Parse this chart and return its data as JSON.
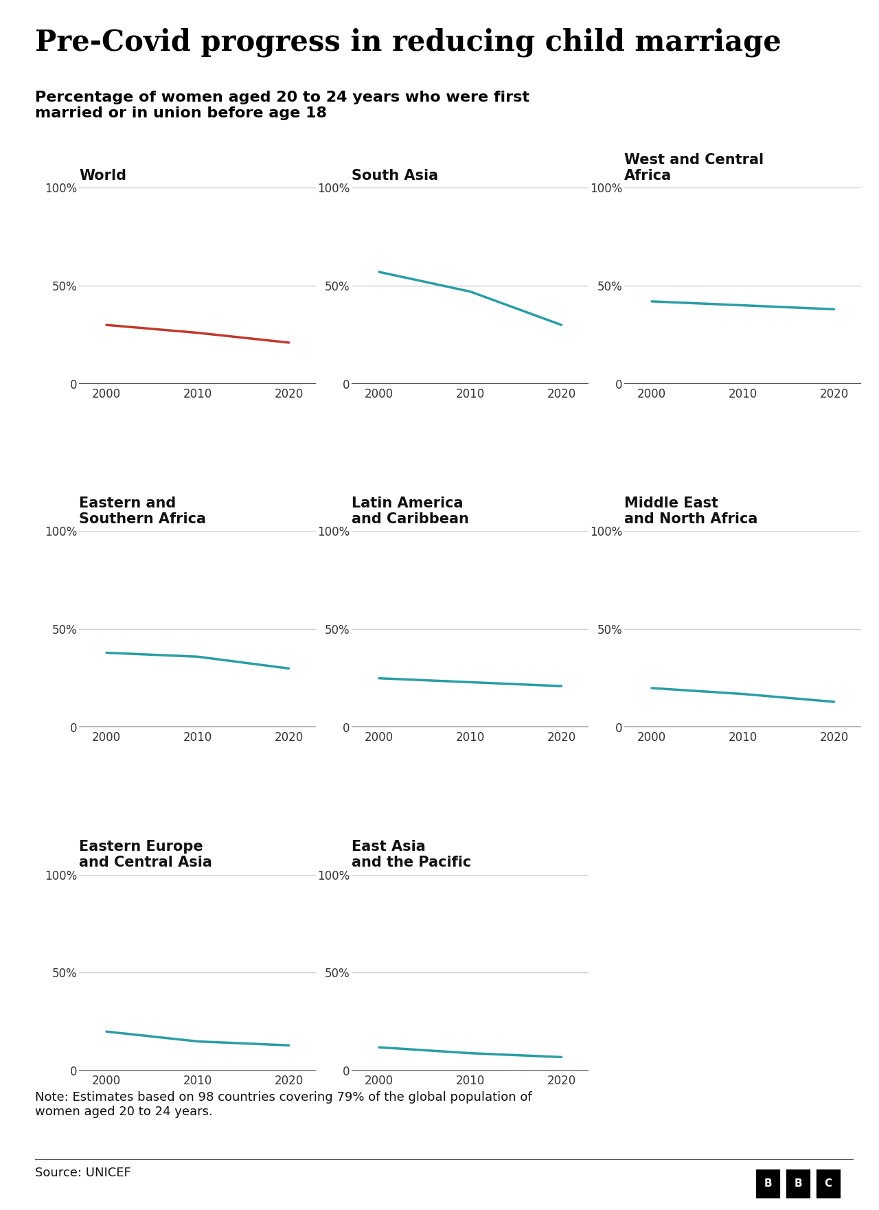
{
  "title": "Pre-Covid progress in reducing child marriage",
  "subtitle": "Percentage of women aged 20 to 24 years who were first\nmarried or in union before age 18",
  "note": "Note: Estimates based on 98 countries covering 79% of the global population of\nwomen aged 20 to 24 years.",
  "source": "Source: UNICEF",
  "years": [
    2000,
    2010,
    2020
  ],
  "panels": [
    {
      "title_lines": [
        "World"
      ],
      "values": [
        30,
        26,
        21
      ],
      "color": "#c0392b",
      "row": 0,
      "col": 0
    },
    {
      "title_lines": [
        "South Asia"
      ],
      "values": [
        57,
        47,
        30
      ],
      "color": "#2a9da5",
      "row": 0,
      "col": 1
    },
    {
      "title_lines": [
        "West and Central",
        "Africa"
      ],
      "values": [
        42,
        40,
        38
      ],
      "color": "#2a9da5",
      "row": 0,
      "col": 2
    },
    {
      "title_lines": [
        "Eastern and",
        "Southern Africa"
      ],
      "values": [
        38,
        36,
        30
      ],
      "color": "#2a9da5",
      "row": 1,
      "col": 0
    },
    {
      "title_lines": [
        "Latin America",
        "and Caribbean"
      ],
      "values": [
        25,
        23,
        21
      ],
      "color": "#2a9da5",
      "row": 1,
      "col": 1
    },
    {
      "title_lines": [
        "Middle East",
        "and North Africa"
      ],
      "values": [
        20,
        17,
        13
      ],
      "color": "#2a9da5",
      "row": 1,
      "col": 2
    },
    {
      "title_lines": [
        "Eastern Europe",
        "and Central Asia"
      ],
      "values": [
        20,
        15,
        13
      ],
      "color": "#2a9da5",
      "row": 2,
      "col": 0
    },
    {
      "title_lines": [
        "East Asia",
        "and the Pacific"
      ],
      "values": [
        12,
        9,
        7
      ],
      "color": "#2a9da5",
      "row": 2,
      "col": 1
    }
  ],
  "ylim": [
    0,
    100
  ],
  "xticks": [
    2000,
    2010,
    2020
  ],
  "bg_color": "#ffffff",
  "grid_color": "#cccccc",
  "zero_line_color": "#1a1a1a",
  "line_width": 2.5,
  "title_fontsize": 30,
  "subtitle_fontsize": 16,
  "panel_title_fontsize": 15,
  "tick_fontsize": 12,
  "note_fontsize": 13,
  "source_fontsize": 13
}
